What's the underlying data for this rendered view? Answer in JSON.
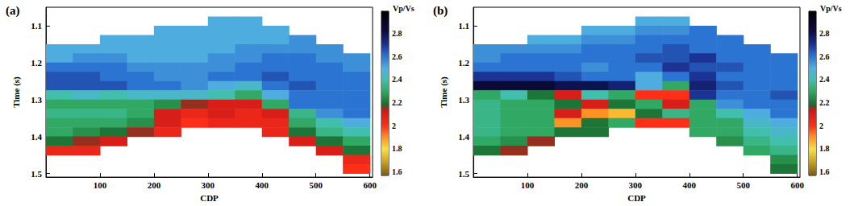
{
  "chart_data": [
    {
      "type": "heatmap",
      "title": "(a)",
      "x_label": "CDP",
      "y_label": "Time (s)",
      "xlim": [
        0,
        605
      ],
      "ylim": [
        1.05,
        1.51
      ],
      "xticks": [
        100,
        200,
        300,
        400,
        500,
        600
      ],
      "yticks": [
        1.1,
        1.2,
        1.3,
        1.4,
        1.5
      ],
      "x_bins": [
        0,
        50,
        100,
        150,
        200,
        250,
        300,
        350,
        400,
        450,
        500,
        550,
        600
      ],
      "y_bins": [
        1.05,
        1.075,
        1.1,
        1.125,
        1.15,
        1.175,
        1.2,
        1.225,
        1.25,
        1.275,
        1.3,
        1.325,
        1.35,
        1.375,
        1.4,
        1.425,
        1.45,
        1.475,
        1.5
      ],
      "cells": [
        [
          null,
          null,
          null,
          null,
          null,
          null,
          null,
          null,
          null,
          null,
          null,
          null
        ],
        [
          null,
          null,
          null,
          null,
          null,
          null,
          2.5,
          2.5,
          null,
          null,
          null,
          null
        ],
        [
          null,
          null,
          null,
          null,
          2.5,
          2.5,
          2.5,
          2.5,
          2.5,
          null,
          null,
          null
        ],
        [
          null,
          null,
          2.5,
          2.5,
          2.5,
          2.5,
          2.5,
          2.5,
          2.5,
          2.55,
          null,
          null
        ],
        [
          2.5,
          2.5,
          2.5,
          2.5,
          2.5,
          2.5,
          2.5,
          2.55,
          2.55,
          2.55,
          2.55,
          null
        ],
        [
          2.5,
          2.55,
          2.55,
          2.5,
          2.5,
          2.5,
          2.55,
          2.55,
          2.6,
          2.6,
          2.55,
          2.55
        ],
        [
          2.6,
          2.6,
          2.6,
          2.55,
          2.55,
          2.55,
          2.55,
          2.6,
          2.6,
          2.6,
          2.6,
          2.55
        ],
        [
          2.65,
          2.65,
          2.6,
          2.6,
          2.55,
          2.55,
          2.6,
          2.6,
          2.65,
          2.6,
          2.6,
          2.6
        ],
        [
          2.65,
          2.65,
          2.65,
          2.6,
          2.6,
          2.55,
          2.5,
          2.45,
          2.6,
          2.65,
          2.6,
          2.6
        ],
        [
          2.4,
          2.45,
          2.4,
          2.45,
          2.45,
          2.45,
          2.4,
          2.3,
          2.5,
          2.6,
          2.6,
          2.6
        ],
        [
          2.3,
          2.3,
          2.3,
          2.3,
          2.25,
          2.15,
          2.1,
          2.1,
          2.3,
          2.6,
          2.6,
          2.6
        ],
        [
          2.35,
          2.35,
          2.35,
          2.3,
          2.1,
          2.05,
          2.1,
          2.05,
          2.1,
          2.35,
          2.55,
          2.6
        ],
        [
          2.3,
          2.3,
          2.3,
          2.25,
          2.1,
          2.0,
          2.05,
          2.05,
          2.05,
          2.3,
          2.4,
          2.5
        ],
        [
          2.3,
          2.25,
          2.2,
          2.15,
          2.05,
          null,
          null,
          null,
          2.05,
          2.2,
          2.35,
          2.4
        ],
        [
          2.2,
          2.15,
          2.1,
          null,
          null,
          null,
          null,
          null,
          null,
          2.1,
          2.2,
          2.3
        ],
        [
          2.05,
          2.05,
          null,
          null,
          null,
          null,
          null,
          null,
          null,
          null,
          2.1,
          2.2
        ],
        [
          null,
          null,
          null,
          null,
          null,
          null,
          null,
          null,
          null,
          null,
          null,
          2.05
        ],
        [
          null,
          null,
          null,
          null,
          null,
          null,
          null,
          null,
          null,
          null,
          null,
          2.0
        ]
      ],
      "colorbar": {
        "title": "Vp/Vs",
        "range": [
          1.57,
          2.99
        ],
        "ticks": [
          1.6,
          1.8,
          2,
          2.2,
          2.4,
          2.6,
          2.8
        ]
      }
    },
    {
      "type": "heatmap",
      "title": "(b)",
      "x_label": "CDP",
      "y_label": "Time (s)",
      "xlim": [
        0,
        605
      ],
      "ylim": [
        1.05,
        1.51
      ],
      "xticks": [
        100,
        200,
        300,
        400,
        500,
        600
      ],
      "yticks": [
        1.1,
        1.2,
        1.3,
        1.4,
        1.5
      ],
      "x_bins": [
        0,
        50,
        100,
        150,
        200,
        250,
        300,
        350,
        400,
        450,
        500,
        550,
        600
      ],
      "y_bins": [
        1.05,
        1.075,
        1.1,
        1.125,
        1.15,
        1.175,
        1.2,
        1.225,
        1.25,
        1.275,
        1.3,
        1.325,
        1.35,
        1.375,
        1.4,
        1.425,
        1.45,
        1.475,
        1.5
      ],
      "cells": [
        [
          null,
          null,
          null,
          null,
          null,
          null,
          null,
          null,
          null,
          null,
          null,
          null
        ],
        [
          null,
          null,
          null,
          null,
          null,
          null,
          2.5,
          2.5,
          null,
          null,
          null,
          null
        ],
        [
          null,
          null,
          null,
          null,
          2.5,
          2.5,
          2.55,
          2.55,
          2.6,
          null,
          null,
          null
        ],
        [
          null,
          null,
          2.5,
          2.5,
          2.55,
          2.55,
          2.6,
          2.6,
          2.6,
          2.6,
          null,
          null
        ],
        [
          2.55,
          2.55,
          2.55,
          2.55,
          2.6,
          2.6,
          2.6,
          2.65,
          2.6,
          2.6,
          2.6,
          null
        ],
        [
          2.55,
          2.6,
          2.6,
          2.6,
          2.6,
          2.6,
          2.65,
          2.65,
          2.7,
          2.6,
          2.6,
          2.6
        ],
        [
          2.6,
          2.6,
          2.6,
          2.6,
          2.55,
          2.6,
          2.6,
          2.7,
          2.65,
          2.65,
          2.6,
          2.6
        ],
        [
          2.7,
          2.7,
          2.7,
          2.65,
          2.6,
          2.6,
          2.5,
          2.6,
          2.7,
          2.6,
          2.6,
          2.6
        ],
        [
          2.85,
          2.85,
          2.85,
          2.8,
          2.8,
          2.75,
          2.5,
          2.3,
          2.75,
          2.65,
          2.6,
          2.6
        ],
        [
          2.3,
          2.4,
          2.2,
          2.1,
          2.4,
          2.3,
          2.0,
          2.0,
          2.7,
          2.6,
          2.6,
          2.65
        ],
        [
          2.35,
          2.3,
          2.3,
          2.2,
          2.1,
          2.2,
          2.3,
          2.1,
          2.3,
          2.55,
          2.6,
          2.6
        ],
        [
          2.35,
          2.3,
          2.3,
          2.1,
          1.9,
          1.85,
          2.2,
          2.35,
          2.3,
          2.4,
          2.5,
          2.6
        ],
        [
          2.35,
          2.3,
          2.3,
          1.9,
          2.2,
          2.3,
          2.0,
          2.0,
          2.3,
          2.3,
          2.45,
          2.5
        ],
        [
          2.35,
          2.3,
          2.3,
          2.2,
          2.2,
          null,
          null,
          null,
          2.3,
          2.3,
          2.4,
          2.45
        ],
        [
          2.3,
          2.25,
          2.15,
          null,
          null,
          null,
          null,
          null,
          null,
          2.25,
          2.35,
          2.4
        ],
        [
          2.2,
          2.15,
          null,
          null,
          null,
          null,
          null,
          null,
          null,
          null,
          2.3,
          2.35
        ],
        [
          null,
          null,
          null,
          null,
          null,
          null,
          null,
          null,
          null,
          null,
          null,
          2.25
        ],
        [
          null,
          null,
          null,
          null,
          null,
          null,
          null,
          null,
          null,
          null,
          null,
          2.2
        ]
      ],
      "colorbar": {
        "title": "Vp/Vs",
        "range": [
          1.57,
          2.99
        ],
        "ticks": [
          1.6,
          1.8,
          2,
          2.2,
          2.4,
          2.6,
          2.8
        ]
      }
    }
  ]
}
